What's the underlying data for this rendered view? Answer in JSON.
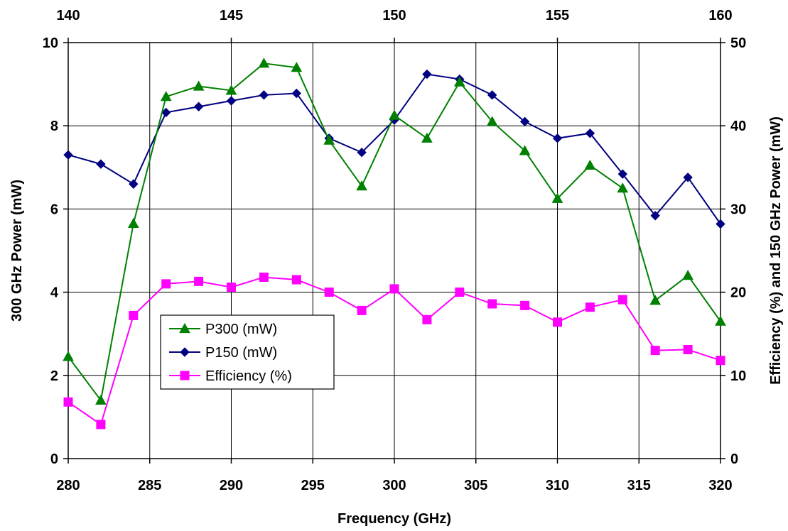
{
  "chart_data": {
    "type": "line",
    "x": [
      280,
      282,
      284,
      286,
      288,
      290,
      292,
      294,
      296,
      298,
      300,
      302,
      304,
      306,
      308,
      310,
      312,
      314,
      316,
      318,
      320
    ],
    "series": [
      {
        "name": "P300 (mW)",
        "axis": "left",
        "color": "#008000",
        "marker": "triangle",
        "values": [
          2.45,
          1.4,
          5.65,
          8.7,
          8.95,
          8.85,
          9.5,
          9.4,
          7.65,
          6.55,
          8.25,
          7.7,
          9.05,
          8.1,
          7.4,
          6.25,
          7.05,
          6.5,
          3.8,
          4.4,
          3.3
        ]
      },
      {
        "name": "P150 (mW)",
        "axis": "right",
        "color": "#000080",
        "marker": "diamond",
        "values": [
          36.5,
          35.4,
          33.0,
          41.6,
          42.3,
          43.0,
          43.7,
          43.9,
          38.5,
          36.8,
          40.7,
          46.2,
          45.6,
          43.7,
          40.5,
          38.5,
          39.1,
          34.2,
          29.2,
          33.8,
          28.2
        ]
      },
      {
        "name": "Efficiency (%)",
        "axis": "right",
        "color": "#FF00FF",
        "marker": "square",
        "values": [
          6.8,
          4.1,
          17.2,
          21.0,
          21.3,
          20.6,
          21.8,
          21.5,
          20.0,
          17.8,
          20.4,
          16.7,
          20.0,
          18.6,
          18.4,
          16.4,
          18.2,
          19.1,
          13.0,
          13.1,
          11.8
        ]
      }
    ],
    "xlabel": "Frequency (GHz)",
    "ylabel": "300 GHz Power (mW)",
    "y2label": "Efficiency (%) and 150 GHz Power (mW)",
    "xlim": [
      280,
      320
    ],
    "ylim": [
      0,
      10
    ],
    "y2lim": [
      0,
      50
    ],
    "x_ticks": [
      280,
      285,
      290,
      295,
      300,
      305,
      310,
      315,
      320
    ],
    "y_ticks": [
      0,
      2,
      4,
      6,
      8,
      10
    ],
    "y2_ticks": [
      0,
      10,
      20,
      30,
      40,
      50
    ],
    "x2lim": [
      140,
      160
    ],
    "x2_ticks": [
      140,
      145,
      150,
      155,
      160
    ],
    "grid": true,
    "legend_position": "lower-left"
  }
}
